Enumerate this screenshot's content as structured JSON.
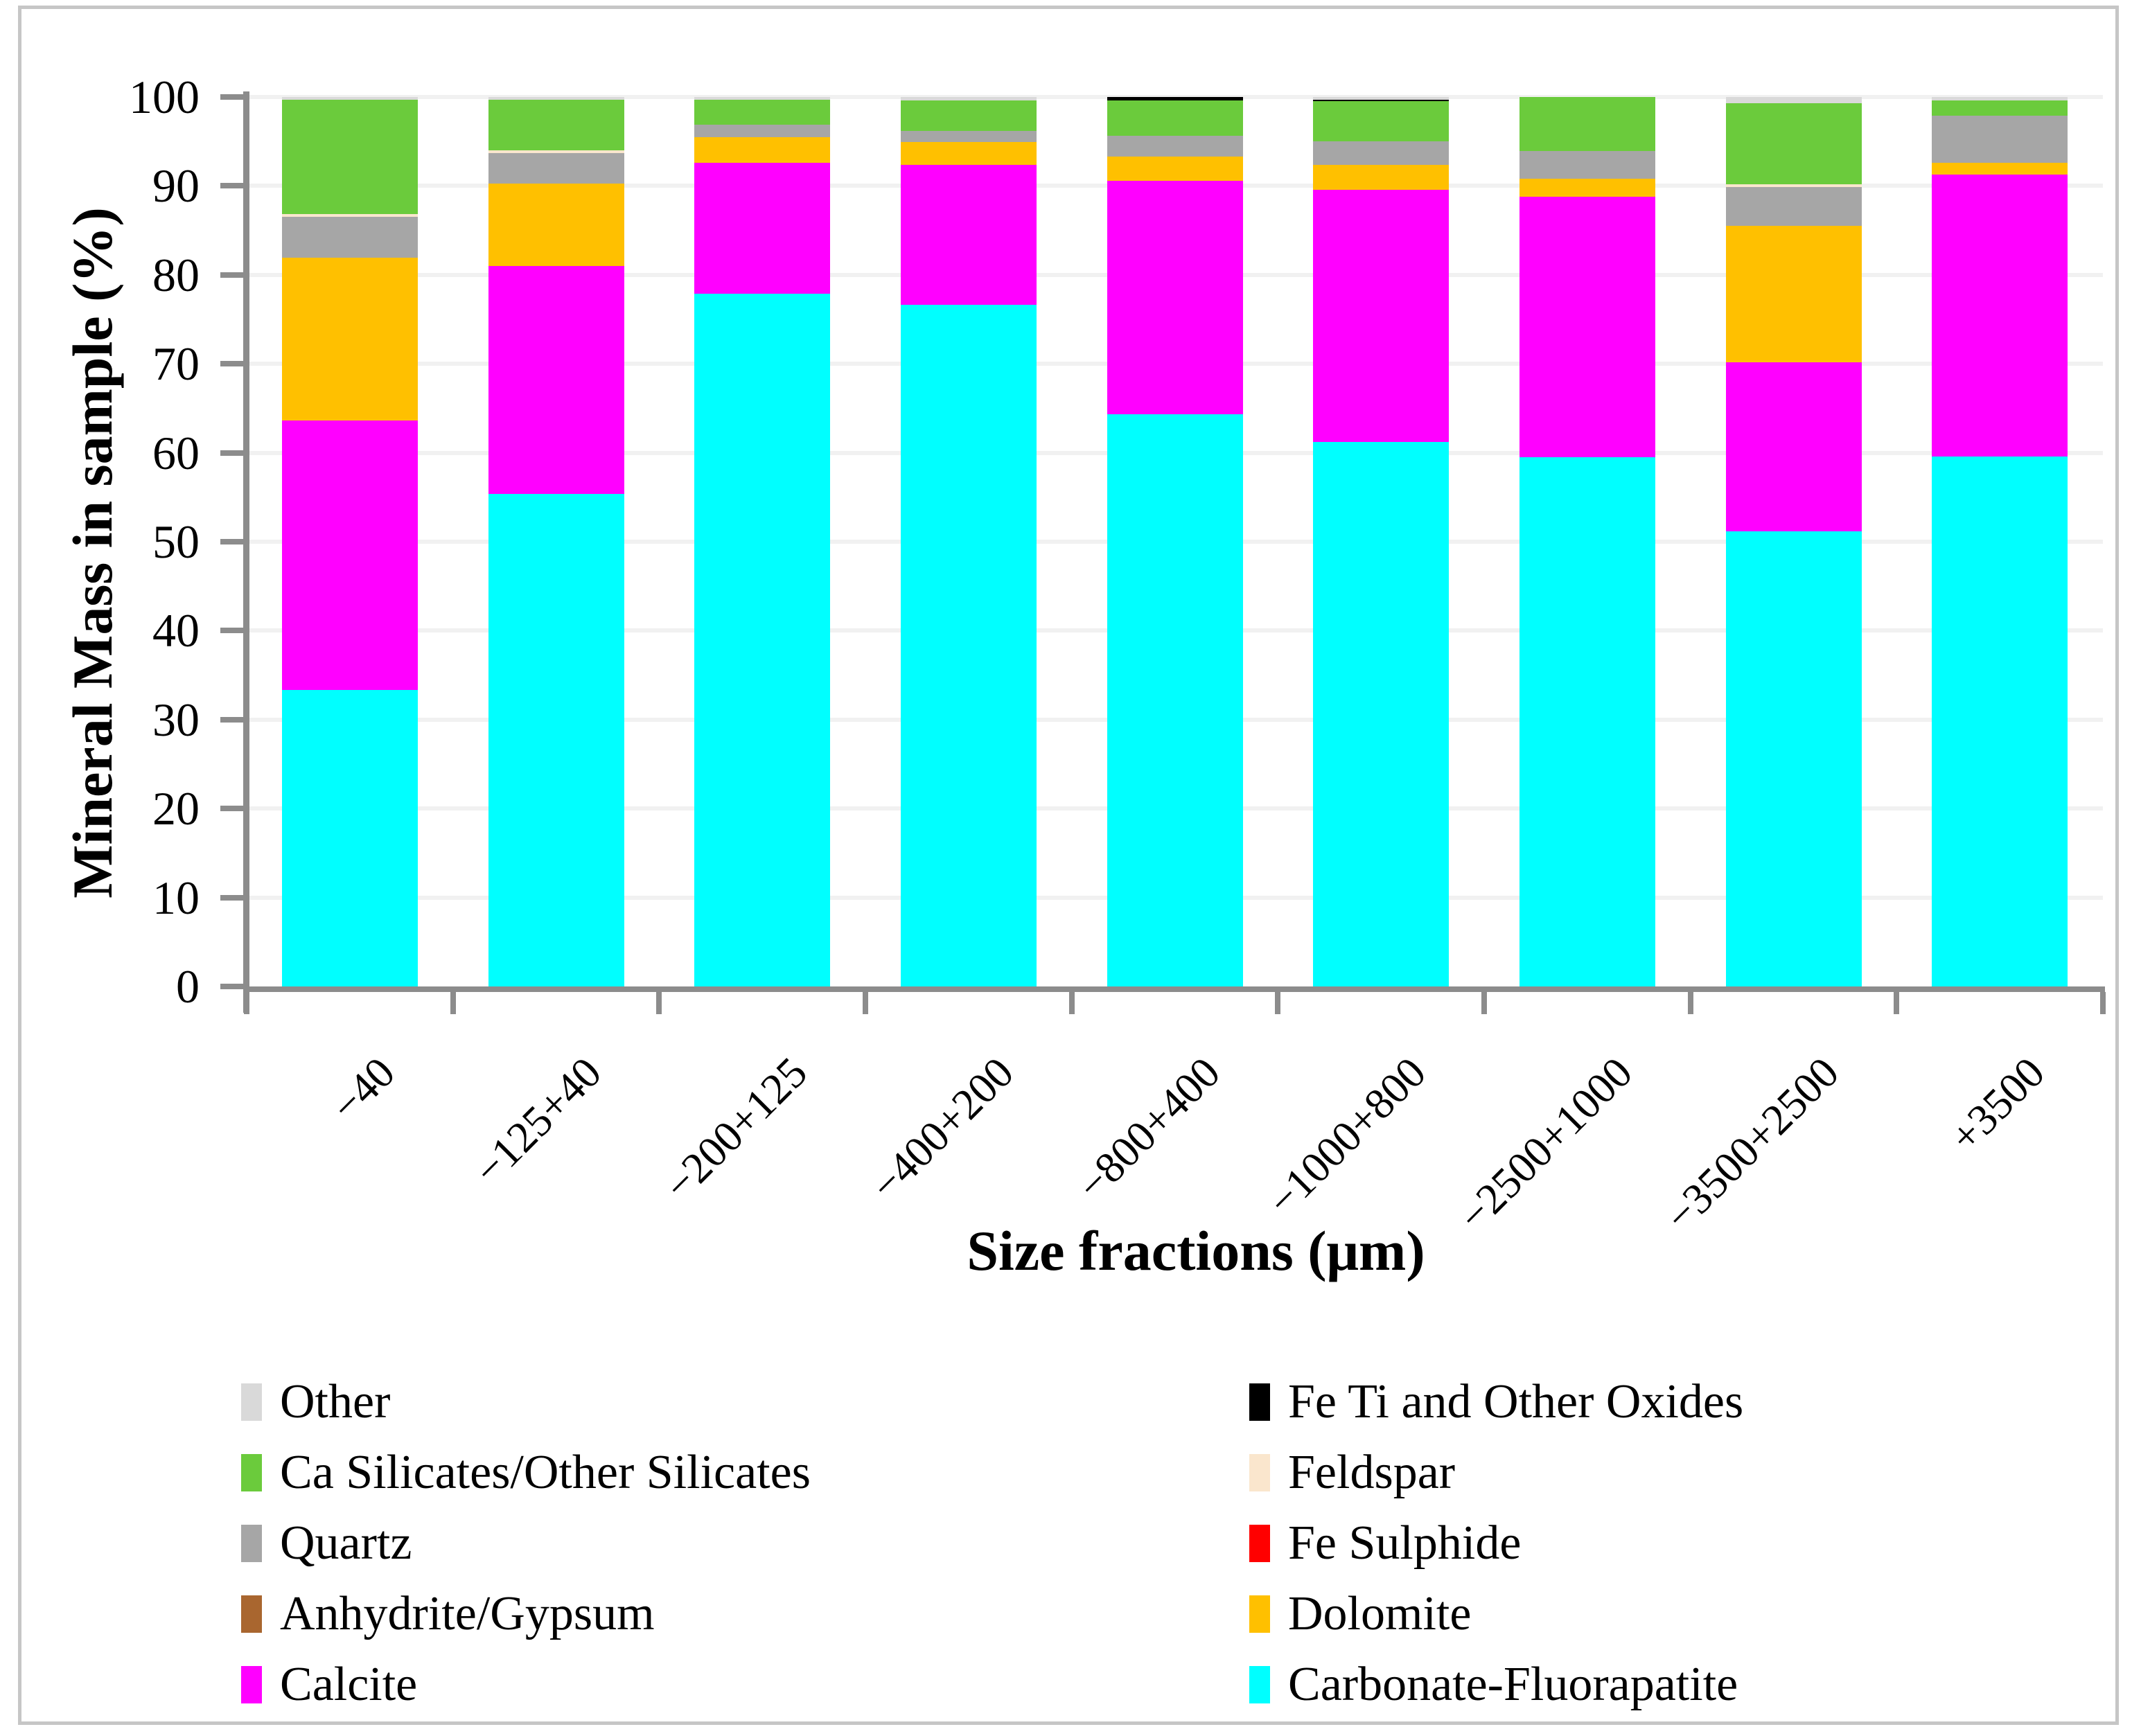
{
  "figure": {
    "background": "#FFFFFF",
    "border_color": "#C6C6C6"
  },
  "chart_data": {
    "type": "bar",
    "stacked": true,
    "title": "",
    "xlabel": "Size fractions (μm)",
    "ylabel": "Mineral Mass in sample (%)",
    "ylim": [
      0,
      100
    ],
    "yticks": [
      0,
      10,
      20,
      30,
      40,
      50,
      60,
      70,
      80,
      90,
      100
    ],
    "grid": "horizontal",
    "legend_position": "bottom-two-columns",
    "categories": [
      "−40",
      "−125+40",
      "−200+125",
      "−400+200",
      "−800+400",
      "−1000+800",
      "−2500+1000",
      "−3500+2500",
      "+3500"
    ],
    "series": [
      {
        "name": "Carbonate-Fluorapatite",
        "color": "#00FFFF",
        "values": [
          33.3,
          55.4,
          77.9,
          76.6,
          64.3,
          61.2,
          59.5,
          51.2,
          59.6
        ]
      },
      {
        "name": "Calcite",
        "color": "#FF00FF",
        "values": [
          30.3,
          25.6,
          14.7,
          15.8,
          26.3,
          28.4,
          29.3,
          19.0,
          31.7
        ]
      },
      {
        "name": "Dolomite",
        "color": "#FFC000",
        "values": [
          18.3,
          9.3,
          2.9,
          2.5,
          2.7,
          2.8,
          2.0,
          15.3,
          1.3
        ]
      },
      {
        "name": "Anhydrite/Gypsum",
        "color": "#A9662F",
        "values": [
          0,
          0,
          0,
          0,
          0,
          0,
          0,
          0,
          0
        ]
      },
      {
        "name": "Fe Sulphide",
        "color": "#FF0000",
        "values": [
          0,
          0,
          0,
          0,
          0,
          0,
          0,
          0,
          0
        ]
      },
      {
        "name": "Quartz",
        "color": "#A6A6A6",
        "values": [
          4.6,
          3.4,
          1.4,
          1.3,
          2.3,
          2.6,
          3.1,
          4.4,
          5.3
        ]
      },
      {
        "name": "Feldspar",
        "color": "#FAE6CD",
        "values": [
          0.3,
          0.3,
          0,
          0,
          0,
          0,
          0,
          0.25,
          0
        ]
      },
      {
        "name": "Ca Silicates/Other Silicates",
        "color": "#6BCB3C",
        "values": [
          12.9,
          5.7,
          2.8,
          3.4,
          4.0,
          4.5,
          6.1,
          9.15,
          1.7
        ]
      },
      {
        "name": "Fe Ti and Other Oxides",
        "color": "#000000",
        "values": [
          0,
          0,
          0,
          0,
          0.4,
          0.15,
          0,
          0,
          0
        ]
      },
      {
        "name": "Other",
        "color": "#D9D9D9",
        "values": [
          0.3,
          0.3,
          0.3,
          0.4,
          0,
          0.35,
          0,
          0.7,
          0.4
        ]
      }
    ]
  },
  "legend": {
    "columns": [
      {
        "items": [
          {
            "label": "Other",
            "color": "#D9D9D9"
          },
          {
            "label": "Ca Silicates/Other Silicates",
            "color": "#6BCB3C"
          },
          {
            "label": "Quartz",
            "color": "#A6A6A6"
          },
          {
            "label": "Anhydrite/Gypsum",
            "color": "#A9662F"
          },
          {
            "label": "Calcite",
            "color": "#FF00FF"
          }
        ]
      },
      {
        "items": [
          {
            "label": "Fe Ti and Other Oxides",
            "color": "#000000"
          },
          {
            "label": "Feldspar",
            "color": "#FAE6CD"
          },
          {
            "label": "Fe Sulphide",
            "color": "#FF0000"
          },
          {
            "label": "Dolomite",
            "color": "#FFC000"
          },
          {
            "label": "Carbonate-Fluorapatite",
            "color": "#00FFFF"
          }
        ]
      }
    ]
  }
}
